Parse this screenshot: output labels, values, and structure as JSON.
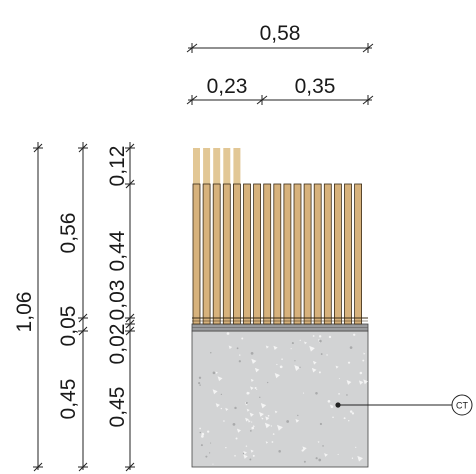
{
  "dimensions": {
    "top_total": "0,58",
    "top_left": "0,23",
    "top_right": "0,35",
    "left_total": "1,06",
    "left_upper": "0,56",
    "left_mid": "0,05",
    "left_lower": "0,45",
    "inner_top": "0,12",
    "inner_upper": "0,44",
    "inner_mid_a": "0,03",
    "inner_mid_b": "0,02",
    "inner_lower": "0,45"
  },
  "callout": {
    "tag": "CT"
  },
  "colors": {
    "wood": "#d7b27c",
    "wood_light": "#e2c795",
    "wood_edge": "#3a2c18",
    "concrete": "#d2d3d4",
    "band": "#9a9b9d",
    "line": "#222222"
  }
}
